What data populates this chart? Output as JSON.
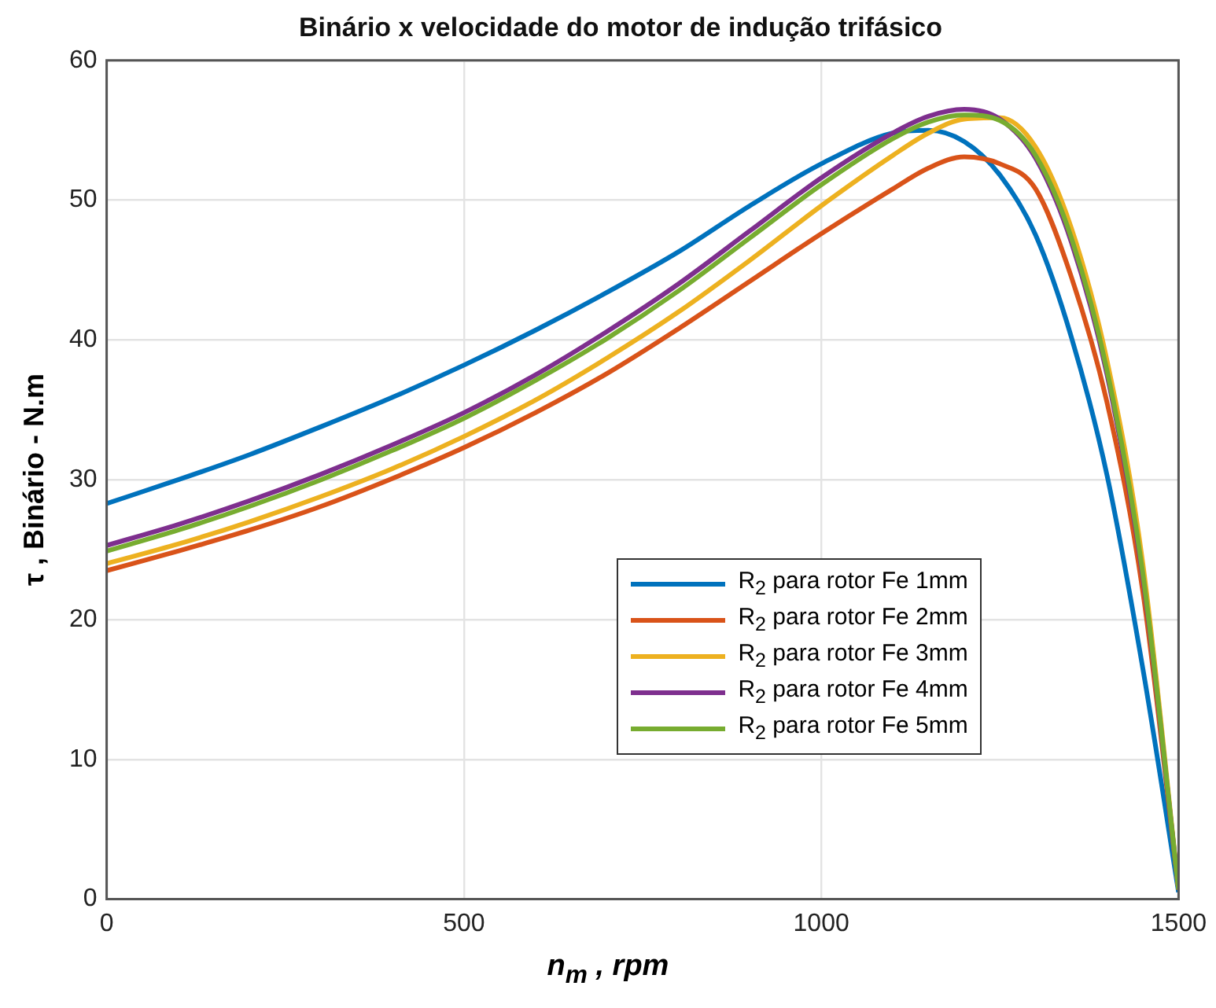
{
  "chart_data": {
    "type": "line",
    "title": "Binário x velocidade do motor de indução trifásico",
    "xlabel": "n$_{m}$ , rpm",
    "ylabel": "τ , Binário - N.m",
    "x": [
      0,
      100,
      200,
      300,
      400,
      500,
      600,
      700,
      800,
      900,
      1000,
      1100,
      1150,
      1200,
      1250,
      1300,
      1350,
      1400,
      1450,
      1500
    ],
    "series": [
      {
        "name": "R$_{2}$ para rotor Fe 1mm",
        "color": "#0072bd",
        "values": [
          28.3,
          30.0,
          31.8,
          33.8,
          35.9,
          38.2,
          40.7,
          43.4,
          46.3,
          49.6,
          52.6,
          54.8,
          55.0,
          54.2,
          51.8,
          47.5,
          40.2,
          30.3,
          16.5,
          0.5
        ]
      },
      {
        "name": "R$_{2}$ para rotor Fe 2mm",
        "color": "#d95319",
        "values": [
          23.5,
          24.9,
          26.4,
          28.1,
          30.1,
          32.3,
          34.8,
          37.6,
          40.8,
          44.2,
          47.6,
          50.8,
          52.3,
          53.1,
          52.6,
          50.8,
          44.5,
          35.5,
          22.0,
          0.7
        ]
      },
      {
        "name": "R$_{2}$ para rotor Fe 3mm",
        "color": "#edb120",
        "values": [
          24.0,
          25.4,
          27.0,
          28.8,
          30.8,
          33.1,
          35.7,
          38.7,
          42.0,
          45.7,
          49.6,
          53.2,
          54.8,
          55.8,
          55.9,
          53.8,
          48.0,
          38.5,
          24.0,
          0.7
        ]
      },
      {
        "name": "R$_{2}$ para rotor Fe 4mm",
        "color": "#7e2f8e",
        "values": [
          25.3,
          26.8,
          28.5,
          30.4,
          32.5,
          34.8,
          37.5,
          40.6,
          44.0,
          47.8,
          51.6,
          54.8,
          56.0,
          56.5,
          55.8,
          53.0,
          47.0,
          37.5,
          23.0,
          0.7
        ]
      },
      {
        "name": "R$_{2}$ para rotor Fe 5mm",
        "color": "#77ac30",
        "values": [
          24.9,
          26.4,
          28.1,
          30.0,
          32.1,
          34.4,
          37.1,
          40.1,
          43.5,
          47.3,
          51.1,
          54.4,
          55.6,
          56.1,
          55.7,
          53.2,
          47.3,
          37.8,
          23.3,
          0.7
        ]
      }
    ],
    "xlim": [
      0,
      1500
    ],
    "xticks": [
      0,
      500,
      1000,
      1500
    ],
    "ylim": [
      0,
      60
    ],
    "yticks": [
      0,
      10,
      20,
      30,
      40,
      50,
      60
    ],
    "grid": true,
    "legend": "right",
    "marker": "none",
    "line_style": "solid"
  }
}
